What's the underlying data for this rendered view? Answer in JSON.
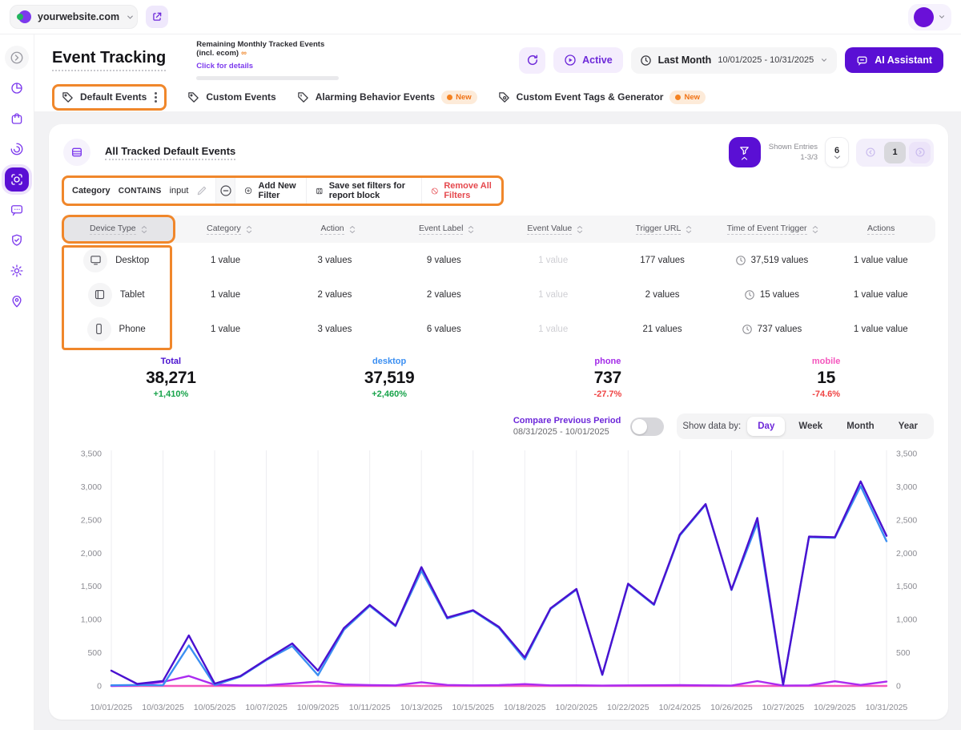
{
  "topbar": {
    "site": "yourwebsite.com"
  },
  "header": {
    "title": "Event Tracking",
    "remaining_label": "Remaining Monthly Tracked Events (incl. ecom)",
    "remaining_infinity": "∞",
    "remaining_link": "Click for details",
    "active_label": "Active",
    "period_label": "Last Month",
    "period_range": "10/01/2025 - 10/31/2025",
    "ai_assistant_label": "AI Assistant"
  },
  "tabs": [
    {
      "label": "Default Events"
    },
    {
      "label": "Custom Events"
    },
    {
      "label": "Alarming Behavior Events",
      "badge": "New"
    },
    {
      "label": "Custom Event Tags & Generator",
      "badge": "New"
    }
  ],
  "panel": {
    "title": "All Tracked Default Events",
    "shown_entries_label": "Shown Entries",
    "shown_entries_value": "1-3/3",
    "page_size": "6",
    "page": "1"
  },
  "filters": {
    "field": "Category",
    "operator": "CONTAINS",
    "value": "input",
    "add_label": "Add New Filter",
    "save_label": "Save set filters for report block",
    "remove_label": "Remove All Filters"
  },
  "table": {
    "columns": [
      "Device Type",
      "Category",
      "Action",
      "Event Label",
      "Event Value",
      "Trigger URL",
      "Time of Event Trigger",
      "Actions"
    ],
    "rows": [
      {
        "device": "Desktop",
        "category": "1 value",
        "action": "3 values",
        "event_label": "9 values",
        "event_value": "1 value",
        "trigger_url": "177 values",
        "time": "37,519 values",
        "actions": "1 value value"
      },
      {
        "device": "Tablet",
        "category": "1 value",
        "action": "2 values",
        "event_label": "2 values",
        "event_value": "1 value",
        "trigger_url": "2 values",
        "time": "15 values",
        "actions": "1 value value"
      },
      {
        "device": "Phone",
        "category": "1 value",
        "action": "3 values",
        "event_label": "6 values",
        "event_value": "1 value",
        "trigger_url": "21 values",
        "time": "737 values",
        "actions": "1 value value"
      }
    ]
  },
  "stats": [
    {
      "label": "Total",
      "value": "38,271",
      "change": "+1,410%",
      "color": "#4a11d0"
    },
    {
      "label": "desktop",
      "value": "37,519",
      "change": "+2,460%",
      "color": "#3b8ff2"
    },
    {
      "label": "phone",
      "value": "737",
      "change": "-27.7%",
      "color": "#a32ce8"
    },
    {
      "label": "mobile",
      "value": "15",
      "change": "-74.6%",
      "color": "#f456bd"
    }
  ],
  "chart_controls": {
    "compare_label": "Compare Previous Period",
    "compare_range": "08/31/2025 - 10/01/2025",
    "show_by_label": "Show data by:",
    "options": [
      "Day",
      "Week",
      "Month",
      "Year"
    ],
    "active_option": "Day"
  },
  "chart_data": {
    "type": "line",
    "x": [
      "10/01/2025",
      "10/02/2025",
      "10/03/2025",
      "10/04/2025",
      "10/05/2025",
      "10/06/2025",
      "10/07/2025",
      "10/08/2025",
      "10/09/2025",
      "10/10/2025",
      "10/11/2025",
      "10/12/2025",
      "10/13/2025",
      "10/14/2025",
      "10/15/2025",
      "10/16/2025",
      "10/17/2025",
      "10/18/2025",
      "10/19/2025",
      "10/20/2025",
      "10/21/2025",
      "10/22/2025",
      "10/23/2025",
      "10/24/2025",
      "10/25/2025",
      "10/26/2025",
      "10/27/2025",
      "10/28/2025",
      "10/29/2025",
      "10/30/2025",
      "10/31/2025"
    ],
    "x_tick_labels": [
      "10/01/2025",
      "10/03/2025",
      "10/05/2025",
      "10/07/2025",
      "10/09/2025",
      "10/11/2025",
      "10/13/2025",
      "10/15/2025",
      "10/18/2025",
      "10/20/2025",
      "10/22/2025",
      "10/24/2025",
      "10/26/2025",
      "10/27/2025",
      "10/29/2025",
      "10/31/2025"
    ],
    "series": [
      {
        "name": "Total",
        "color": "#4a11d0",
        "values": [
          230,
          30,
          75,
          760,
          35,
          150,
          400,
          640,
          230,
          870,
          1220,
          910,
          1790,
          1030,
          1140,
          890,
          430,
          1170,
          1460,
          170,
          1540,
          1230,
          2280,
          2740,
          1450,
          2530,
          20,
          2250,
          2240,
          3080,
          2260
        ]
      },
      {
        "name": "desktop",
        "color": "#3b8ff2",
        "values": [
          10,
          15,
          10,
          610,
          15,
          140,
          390,
          600,
          160,
          845,
          1205,
          900,
          1735,
          1015,
          1130,
          875,
          400,
          1160,
          1450,
          165,
          1530,
          1220,
          2265,
          2730,
          1445,
          2455,
          15,
          2240,
          2230,
          3010,
          2180
        ]
      },
      {
        "name": "phone",
        "color": "#ab2bf0",
        "values": [
          0,
          10,
          60,
          150,
          18,
          8,
          10,
          38,
          65,
          22,
          12,
          8,
          55,
          15,
          8,
          12,
          28,
          8,
          10,
          5,
          8,
          10,
          12,
          8,
          5,
          72,
          5,
          8,
          70,
          15,
          65
        ]
      },
      {
        "name": "mobile",
        "color": "#f456bd",
        "values": [
          0.5,
          0.5,
          0.5,
          0.5,
          0.5,
          0.5,
          0.5,
          0.5,
          0.5,
          0.5,
          0.5,
          0.5,
          0.5,
          0.5,
          0.5,
          0.5,
          0.5,
          0.5,
          0.5,
          0.5,
          0.5,
          0.5,
          0.5,
          0.5,
          0.5,
          0.5,
          0.5,
          0.5,
          0.5,
          0.5,
          0.5
        ]
      }
    ],
    "ylim": [
      0,
      3500
    ],
    "yticks": [
      {
        "v": 0,
        "label": "0"
      },
      {
        "v": 500,
        "label": "500"
      },
      {
        "v": 1000,
        "label": "1,000"
      },
      {
        "v": 1500,
        "label": "1,500"
      },
      {
        "v": 2000,
        "label": "2,000"
      },
      {
        "v": 2500,
        "label": "2,500"
      },
      {
        "v": 3000,
        "label": "3,000"
      },
      {
        "v": 3500,
        "label": "3,500"
      }
    ],
    "grid": "vertical",
    "legend": "none",
    "title": ""
  }
}
